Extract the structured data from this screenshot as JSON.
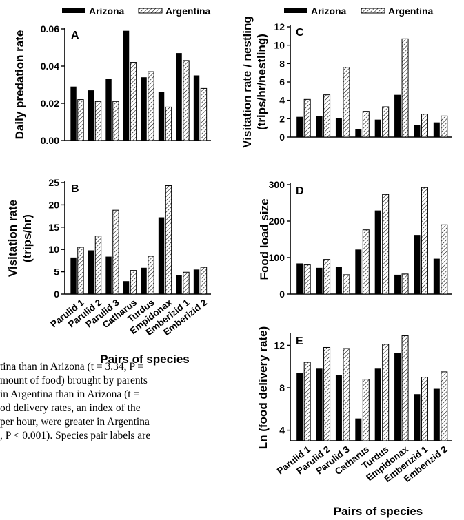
{
  "legend": {
    "series_a": "Arizona",
    "series_b": "Argentina"
  },
  "caption_lines": [
    "tina than in Arizona (t = 3.34, P =",
    "mount of food) brought by parents",
    " in Argentina than in Arizona (t =",
    "od delivery rates, an index of the",
    " per hour, were greater in Argentina",
    ", P < 0.001). Species pair labels are"
  ],
  "colors": {
    "arizona": "#000000",
    "argentina": "#ffffff",
    "axis": "#000000"
  },
  "chart_data": [
    {
      "panel": "A",
      "type": "bar",
      "ylabel": "Daily predation rate",
      "xlabel": "",
      "categories": [
        "Parulid 1",
        "Parulid 2",
        "Parulid 3",
        "Catharus",
        "Turdus",
        "Empidonax",
        "Emberizid 1",
        "Emberizid 2"
      ],
      "yticks": [
        "0.00",
        "0.02",
        "0.04",
        "0.06"
      ],
      "ylim": [
        0,
        0.06
      ],
      "series": [
        {
          "name": "Arizona",
          "values": [
            0.029,
            0.027,
            0.033,
            0.059,
            0.034,
            0.026,
            0.047,
            0.035
          ]
        },
        {
          "name": "Argentina",
          "values": [
            0.022,
            0.021,
            0.021,
            0.042,
            0.037,
            0.018,
            0.043,
            0.028
          ]
        }
      ]
    },
    {
      "panel": "B",
      "type": "bar",
      "ylabel": "Visitation rate (trips/hr)",
      "xlabel": "Pairs of species",
      "categories": [
        "Parulid 1",
        "Parulid 2",
        "Parulid 3",
        "Catharus",
        "Turdus",
        "Empidonax",
        "Emberizid 1",
        "Emberizid 2"
      ],
      "yticks": [
        "0",
        "5",
        "10",
        "15",
        "20",
        "25"
      ],
      "ylim": [
        0,
        25
      ],
      "series": [
        {
          "name": "Arizona",
          "values": [
            8.2,
            9.8,
            8.4,
            2.9,
            5.9,
            17.2,
            4.3,
            5.5
          ]
        },
        {
          "name": "Argentina",
          "values": [
            10.5,
            13.0,
            18.8,
            5.3,
            8.5,
            24.3,
            4.9,
            6.0
          ]
        }
      ]
    },
    {
      "panel": "C",
      "type": "bar",
      "ylabel": "Visitation rate / nestling (trips/hr/nestling)",
      "xlabel": "",
      "categories": [
        "Parulid 1",
        "Parulid 2",
        "Parulid 3",
        "Catharus",
        "Turdus",
        "Empidonax",
        "Emberizid 1",
        "Emberizid 2"
      ],
      "yticks": [
        "0",
        "2",
        "4",
        "6",
        "8",
        "10",
        "12"
      ],
      "ylim": [
        0,
        12
      ],
      "series": [
        {
          "name": "Arizona",
          "values": [
            2.2,
            2.3,
            2.1,
            0.9,
            1.9,
            4.6,
            1.3,
            1.6
          ]
        },
        {
          "name": "Argentina",
          "values": [
            4.1,
            4.6,
            7.6,
            2.8,
            3.3,
            10.7,
            2.5,
            2.3
          ]
        }
      ]
    },
    {
      "panel": "D",
      "type": "bar",
      "ylabel": "Food load size",
      "xlabel": "",
      "categories": [
        "Parulid 1",
        "Parulid 2",
        "Parulid 3",
        "Catharus",
        "Turdus",
        "Empidonax",
        "Emberizid 1",
        "Emberizid 2"
      ],
      "yticks": [
        "0",
        "100",
        "200",
        "300"
      ],
      "ylim": [
        0,
        300
      ],
      "series": [
        {
          "name": "Arizona",
          "values": [
            84,
            72,
            74,
            122,
            229,
            53,
            162,
            97
          ]
        },
        {
          "name": "Argentina",
          "values": [
            80,
            95,
            53,
            176,
            273,
            55,
            292,
            190
          ]
        }
      ]
    },
    {
      "panel": "E",
      "type": "bar",
      "ylabel": "Ln (food delivery rate)",
      "xlabel": "Pairs of species",
      "categories": [
        "Parulid 1",
        "Parulid 2",
        "Parulid 3",
        "Catharus",
        "Turdus",
        "Empidonax",
        "Emberizid 1",
        "Emberizid 2"
      ],
      "yticks": [
        "4",
        "8",
        "12"
      ],
      "ylim": [
        3,
        13
      ],
      "series": [
        {
          "name": "Arizona",
          "values": [
            9.4,
            9.8,
            9.2,
            5.1,
            9.8,
            11.3,
            7.4,
            7.9
          ]
        },
        {
          "name": "Argentina",
          "values": [
            10.4,
            11.8,
            11.7,
            8.8,
            12.1,
            12.9,
            9.0,
            9.5
          ]
        }
      ]
    }
  ]
}
